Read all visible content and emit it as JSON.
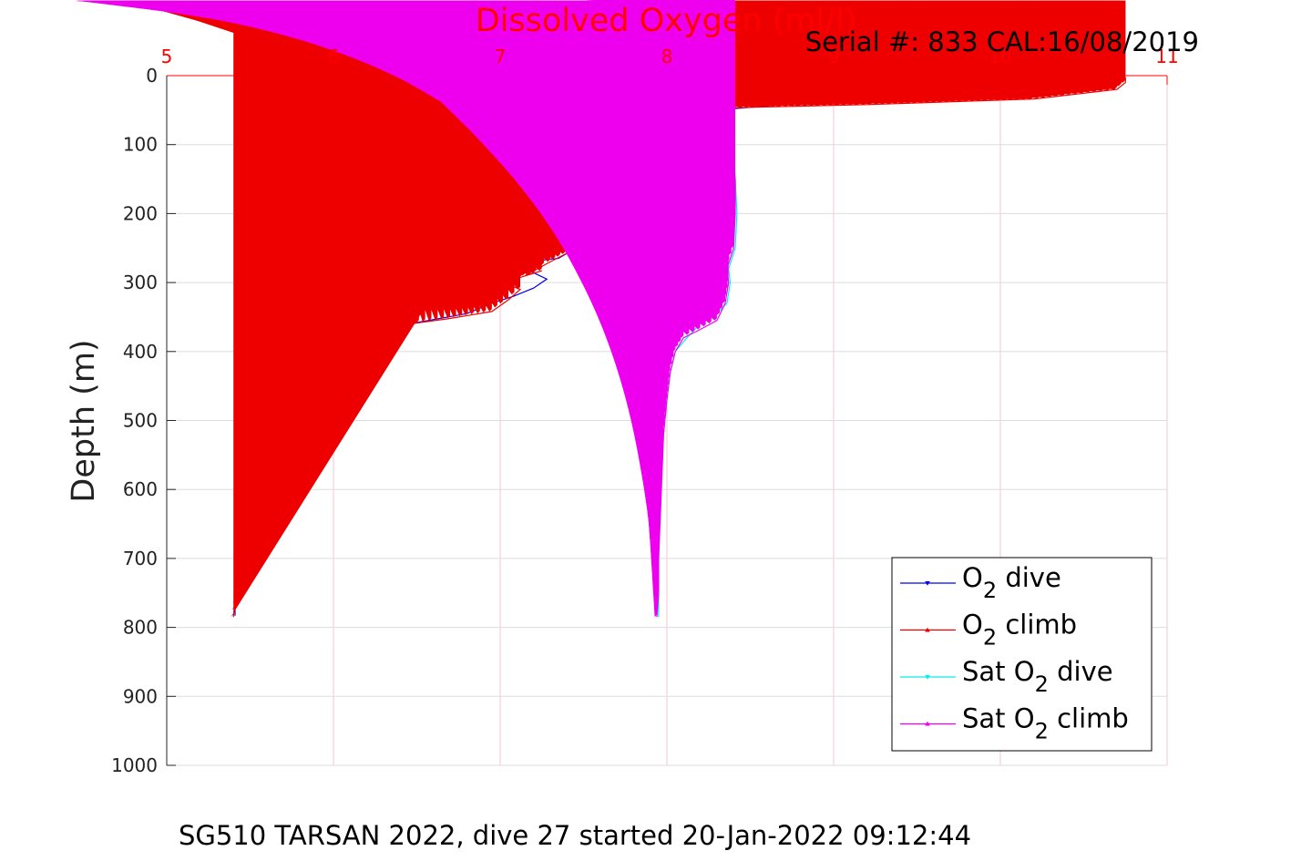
{
  "chart_data": {
    "type": "line",
    "title": "Dissolved Oxygen (ml/l)",
    "subtitle": "Serial #: 833  CAL:16/08/2019",
    "caption": "SG510 TARSAN 2022, dive 27 started 20-Jan-2022 09:12:44",
    "ylabel": "Depth (m)",
    "xlim": [
      5,
      11
    ],
    "ylim": [
      0,
      1000
    ],
    "y_reversed": true,
    "x_axis_position": "top",
    "grid": true,
    "legend_position": "bottom-right",
    "xticks": [
      "5",
      "6",
      "7",
      "8",
      "9",
      "10",
      "11"
    ],
    "yticks": [
      "0",
      "100",
      "200",
      "300",
      "400",
      "500",
      "600",
      "700",
      "800",
      "900",
      "1000"
    ],
    "series": [
      {
        "name": "O2 dive",
        "legend_main": "O",
        "legend_sub": "2",
        "legend_rest": " dive",
        "color": "#0000ee",
        "marker": "triangle-down",
        "points": [
          [
            10.25,
            0
          ],
          [
            10.3,
            8
          ],
          [
            10.3,
            18
          ],
          [
            10.1,
            28
          ],
          [
            9.0,
            36
          ],
          [
            8.4,
            48
          ],
          [
            8.0,
            55
          ],
          [
            7.7,
            62
          ],
          [
            7.5,
            68
          ],
          [
            7.3,
            74
          ],
          [
            7.15,
            80
          ],
          [
            7.2,
            86
          ],
          [
            7.2,
            92
          ],
          [
            7.15,
            98
          ],
          [
            7.9,
            102
          ],
          [
            8.3,
            105
          ],
          [
            8.4,
            110
          ],
          [
            8.0,
            122
          ],
          [
            7.9,
            132
          ],
          [
            7.8,
            145
          ],
          [
            7.7,
            160
          ],
          [
            7.6,
            172
          ],
          [
            7.5,
            185
          ],
          [
            7.45,
            200
          ],
          [
            7.4,
            218
          ],
          [
            7.4,
            240
          ],
          [
            7.42,
            255
          ],
          [
            7.35,
            265
          ],
          [
            7.15,
            270
          ],
          [
            6.95,
            275
          ],
          [
            7.15,
            280
          ],
          [
            7.28,
            295
          ],
          [
            7.2,
            308
          ],
          [
            7.08,
            320
          ],
          [
            6.95,
            330
          ],
          [
            6.8,
            345
          ],
          [
            6.5,
            358
          ],
          [
            6.25,
            366
          ],
          [
            6.05,
            380
          ],
          [
            5.9,
            395
          ],
          [
            5.82,
            415
          ],
          [
            5.7,
            438
          ],
          [
            5.6,
            455
          ],
          [
            5.52,
            475
          ],
          [
            5.5,
            500
          ],
          [
            5.5,
            540
          ],
          [
            5.47,
            580
          ],
          [
            5.45,
            620
          ],
          [
            5.43,
            660
          ],
          [
            5.42,
            700
          ],
          [
            5.42,
            740
          ],
          [
            5.41,
            765
          ],
          [
            5.41,
            783
          ]
        ]
      },
      {
        "name": "O2 climb",
        "legend_main": "O",
        "legend_sub": "2",
        "legend_rest": " climb",
        "color": "#ee0000",
        "marker": "triangle-up",
        "points": [
          [
            5.4,
            785
          ],
          [
            5.41,
            765
          ],
          [
            5.42,
            740
          ],
          [
            5.42,
            700
          ],
          [
            5.44,
            660
          ],
          [
            5.46,
            620
          ],
          [
            5.47,
            580
          ],
          [
            5.5,
            540
          ],
          [
            5.52,
            500
          ],
          [
            5.56,
            470
          ],
          [
            5.62,
            450
          ],
          [
            5.67,
            430
          ],
          [
            5.73,
            410
          ],
          [
            5.85,
            392
          ],
          [
            6.1,
            378
          ],
          [
            6.4,
            362
          ],
          [
            6.7,
            352
          ],
          [
            6.95,
            342
          ],
          [
            7.05,
            325
          ],
          [
            7.12,
            310
          ],
          [
            7.02,
            300
          ],
          [
            7.25,
            283
          ],
          [
            7.15,
            290
          ],
          [
            7.3,
            270
          ],
          [
            7.42,
            255
          ],
          [
            7.42,
            230
          ],
          [
            7.35,
            205
          ],
          [
            7.45,
            190
          ],
          [
            7.55,
            175
          ],
          [
            7.7,
            150
          ],
          [
            7.6,
            140
          ],
          [
            7.45,
            125
          ],
          [
            7.7,
            105
          ],
          [
            7.45,
            100
          ],
          [
            7.8,
            95
          ],
          [
            7.3,
            90
          ],
          [
            7.65,
            80
          ],
          [
            7.45,
            74
          ],
          [
            7.8,
            68
          ],
          [
            8.3,
            55
          ],
          [
            8.0,
            50
          ],
          [
            8.5,
            46
          ],
          [
            9.2,
            42
          ],
          [
            10.2,
            34
          ],
          [
            10.7,
            20
          ],
          [
            10.75,
            10
          ],
          [
            10.75,
            3
          ],
          [
            10.72,
            0
          ]
        ]
      },
      {
        "name": "Sat O2 dive",
        "legend_main": "Sat O",
        "legend_sub": "2",
        "legend_rest": " dive",
        "color": "#00eeee",
        "marker": "triangle-down",
        "points": [
          [
            8.22,
            0
          ],
          [
            8.24,
            15
          ],
          [
            8.3,
            30
          ],
          [
            8.36,
            50
          ],
          [
            8.38,
            80
          ],
          [
            8.4,
            110
          ],
          [
            8.41,
            150
          ],
          [
            8.42,
            200
          ],
          [
            8.41,
            250
          ],
          [
            8.37,
            280
          ],
          [
            8.38,
            300
          ],
          [
            8.36,
            330
          ],
          [
            8.3,
            345
          ],
          [
            8.2,
            360
          ],
          [
            8.12,
            380
          ],
          [
            8.05,
            400
          ],
          [
            8.02,
            430
          ],
          [
            8.0,
            470
          ],
          [
            7.98,
            520
          ],
          [
            7.97,
            580
          ],
          [
            7.96,
            640
          ],
          [
            7.95,
            700
          ],
          [
            7.95,
            750
          ],
          [
            7.95,
            785
          ]
        ]
      },
      {
        "name": "Sat O2 climb",
        "legend_main": "Sat O",
        "legend_sub": "2",
        "legend_rest": " climb",
        "color": "#ee00ee",
        "marker": "triangle-up",
        "points": [
          [
            7.94,
            785
          ],
          [
            7.95,
            750
          ],
          [
            7.95,
            700
          ],
          [
            7.96,
            640
          ],
          [
            7.97,
            580
          ],
          [
            7.98,
            520
          ],
          [
            8.0,
            470
          ],
          [
            8.02,
            430
          ],
          [
            8.05,
            400
          ],
          [
            8.1,
            380
          ],
          [
            8.2,
            368
          ],
          [
            8.3,
            355
          ],
          [
            8.35,
            330
          ],
          [
            8.37,
            300
          ],
          [
            8.36,
            280
          ],
          [
            8.4,
            250
          ],
          [
            8.41,
            200
          ],
          [
            8.41,
            150
          ],
          [
            8.39,
            110
          ],
          [
            8.38,
            80
          ],
          [
            8.34,
            50
          ],
          [
            8.27,
            30
          ],
          [
            8.22,
            15
          ],
          [
            8.21,
            0
          ]
        ]
      }
    ]
  }
}
